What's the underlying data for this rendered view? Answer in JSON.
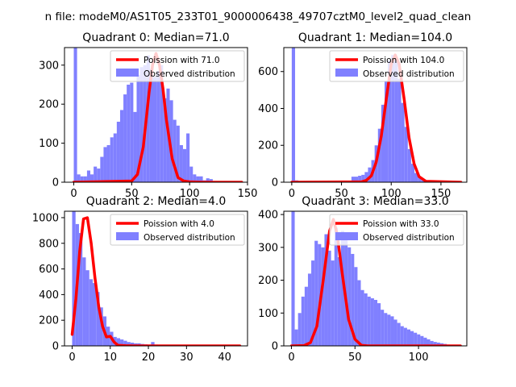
{
  "figure_title": "n file: modeM0/AS1T05_233T01_9000006438_49707cztM0_level2_quad_clean",
  "colors": {
    "hist": "#8080ff",
    "poisson": "#ff0000",
    "axes": "#000000",
    "legend_border": "#cccccc"
  },
  "chart_data": [
    {
      "type": "bar",
      "title": "Quadrant 0: Median=71.0",
      "xlim": [
        -8,
        150
      ],
      "ylim": [
        0,
        345
      ],
      "xticks": [
        0,
        50,
        100,
        150
      ],
      "yticks": [
        0,
        100,
        200,
        300
      ],
      "legend": [
        "Poission with 71.0",
        "Observed distribution"
      ],
      "legend_position": "top-right",
      "hist": {
        "bin_start": 0,
        "bin_width": 2.857,
        "values": [
          345,
          20,
          15,
          15,
          30,
          20,
          40,
          35,
          65,
          90,
          95,
          115,
          125,
          155,
          185,
          225,
          250,
          255,
          180,
          275,
          295,
          300,
          325,
          290,
          270,
          285,
          300,
          215,
          240,
          210,
          160,
          145,
          95,
          85,
          125,
          40,
          20,
          15,
          15,
          5,
          10,
          8,
          3,
          3,
          2,
          2,
          1,
          2,
          2,
          1
        ]
      },
      "poisson": {
        "mean": 71.0,
        "x": [
          0,
          50,
          55,
          60,
          65,
          68,
          71,
          74,
          77,
          80,
          85,
          90,
          95,
          100,
          110,
          145
        ],
        "y": [
          0,
          3,
          20,
          90,
          230,
          300,
          330,
          300,
          240,
          160,
          60,
          12,
          3,
          1,
          0,
          0
        ]
      }
    },
    {
      "type": "bar",
      "title": "Quadrant 1: Median=104.0",
      "xlim": [
        -8,
        176
      ],
      "ylim": [
        0,
        730
      ],
      "xticks": [
        0,
        50,
        100,
        150
      ],
      "yticks": [
        0,
        200,
        400,
        600
      ],
      "legend": [
        "Poission with 104.0",
        "Observed distribution"
      ],
      "legend_position": "top-right",
      "hist": {
        "bin_start": 0,
        "bin_width": 3.333,
        "values": [
          730,
          10,
          0,
          0,
          0,
          0,
          0,
          0,
          0,
          0,
          0,
          0,
          0,
          0,
          0,
          0,
          0,
          0,
          30,
          30,
          35,
          40,
          55,
          80,
          120,
          200,
          290,
          420,
          550,
          660,
          690,
          670,
          560,
          430,
          300,
          180,
          100,
          50,
          30,
          15,
          10,
          5,
          3,
          2,
          2,
          1,
          1,
          1,
          1,
          1
        ]
      },
      "poisson": {
        "mean": 104.0,
        "x": [
          0,
          70,
          75,
          80,
          85,
          90,
          95,
          100,
          104,
          108,
          113,
          118,
          123,
          128,
          135,
          170
        ],
        "y": [
          0,
          2,
          10,
          35,
          110,
          250,
          450,
          640,
          690,
          640,
          450,
          240,
          100,
          30,
          5,
          0
        ]
      }
    },
    {
      "type": "bar",
      "title": "Quadrant 2: Median=4.0",
      "xlim": [
        -2,
        46
      ],
      "ylim": [
        0,
        1050
      ],
      "xticks": [
        0,
        10,
        20,
        30,
        40
      ],
      "yticks": [
        0,
        200,
        400,
        600,
        800,
        1000
      ],
      "legend": [
        "Poission with 4.0",
        "Observed distribution"
      ],
      "legend_position": "top-right",
      "hist": {
        "bin_start": 0,
        "bin_width": 0.9,
        "values": [
          1050,
          950,
          880,
          690,
          590,
          520,
          490,
          420,
          300,
          230,
          150,
          110,
          70,
          60,
          50,
          40,
          30,
          25,
          20,
          20,
          15,
          12,
          10,
          30,
          10,
          8,
          6,
          5,
          5,
          4,
          3,
          3,
          3,
          2,
          2,
          2,
          1,
          1,
          1,
          1,
          1,
          1,
          1,
          1,
          1,
          1,
          1,
          1,
          1,
          1
        ]
      },
      "poisson": {
        "mean": 4.0,
        "x": [
          0,
          1,
          2,
          3,
          4,
          5,
          6,
          7,
          8,
          9,
          10,
          11,
          12,
          14,
          16,
          18,
          44
        ],
        "y": [
          90,
          370,
          740,
          990,
          1000,
          800,
          530,
          300,
          150,
          70,
          75,
          30,
          5,
          1,
          0,
          0,
          0
        ]
      }
    },
    {
      "type": "bar",
      "title": "Quadrant 3: Median=33.0",
      "xlim": [
        -6,
        138
      ],
      "ylim": [
        0,
        410
      ],
      "xticks": [
        0,
        50,
        100
      ],
      "yticks": [
        0,
        100,
        200,
        300,
        400
      ],
      "legend": [
        "Poission with 33.0",
        "Observed distribution"
      ],
      "legend_position": "top-right",
      "hist": {
        "bin_start": 0,
        "bin_width": 2.6,
        "values": [
          410,
          50,
          100,
          150,
          180,
          220,
          260,
          320,
          310,
          300,
          340,
          290,
          260,
          360,
          270,
          350,
          340,
          300,
          280,
          240,
          200,
          170,
          160,
          150,
          145,
          140,
          130,
          110,
          100,
          95,
          90,
          80,
          70,
          60,
          55,
          50,
          45,
          40,
          35,
          30,
          25,
          20,
          15,
          12,
          10,
          8,
          6,
          4,
          3,
          2
        ]
      },
      "poisson": {
        "mean": 33.0,
        "x": [
          0,
          10,
          15,
          20,
          25,
          30,
          33,
          36,
          40,
          45,
          50,
          55,
          60,
          133
        ],
        "y": [
          0,
          1,
          10,
          60,
          200,
          350,
          385,
          340,
          220,
          80,
          20,
          2,
          0,
          0
        ]
      }
    }
  ]
}
